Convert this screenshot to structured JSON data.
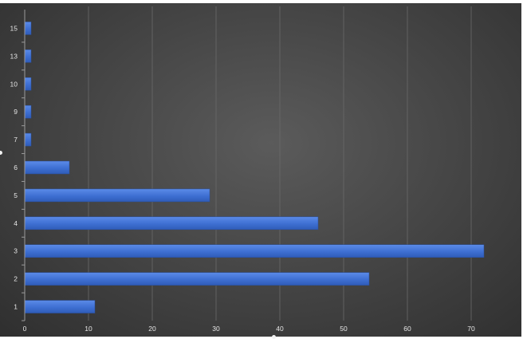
{
  "chart_data": {
    "type": "bar",
    "orientation": "horizontal",
    "categories": [
      "1",
      "2",
      "3",
      "4",
      "5",
      "6",
      "7",
      "9",
      "10",
      "13",
      "15"
    ],
    "values": [
      11,
      54,
      72,
      46,
      29,
      7,
      1,
      1,
      1,
      1,
      1
    ],
    "x_ticks": [
      "0",
      "10",
      "20",
      "30",
      "40",
      "50",
      "60",
      "70"
    ],
    "xlim": [
      0,
      78
    ],
    "title": "",
    "xlabel": "",
    "ylabel": "",
    "grid": "vertical",
    "legend": "none",
    "colors": {
      "bar": "#3f6fd4",
      "bar_highlight": "#5a88e6",
      "background": "#474747"
    }
  }
}
